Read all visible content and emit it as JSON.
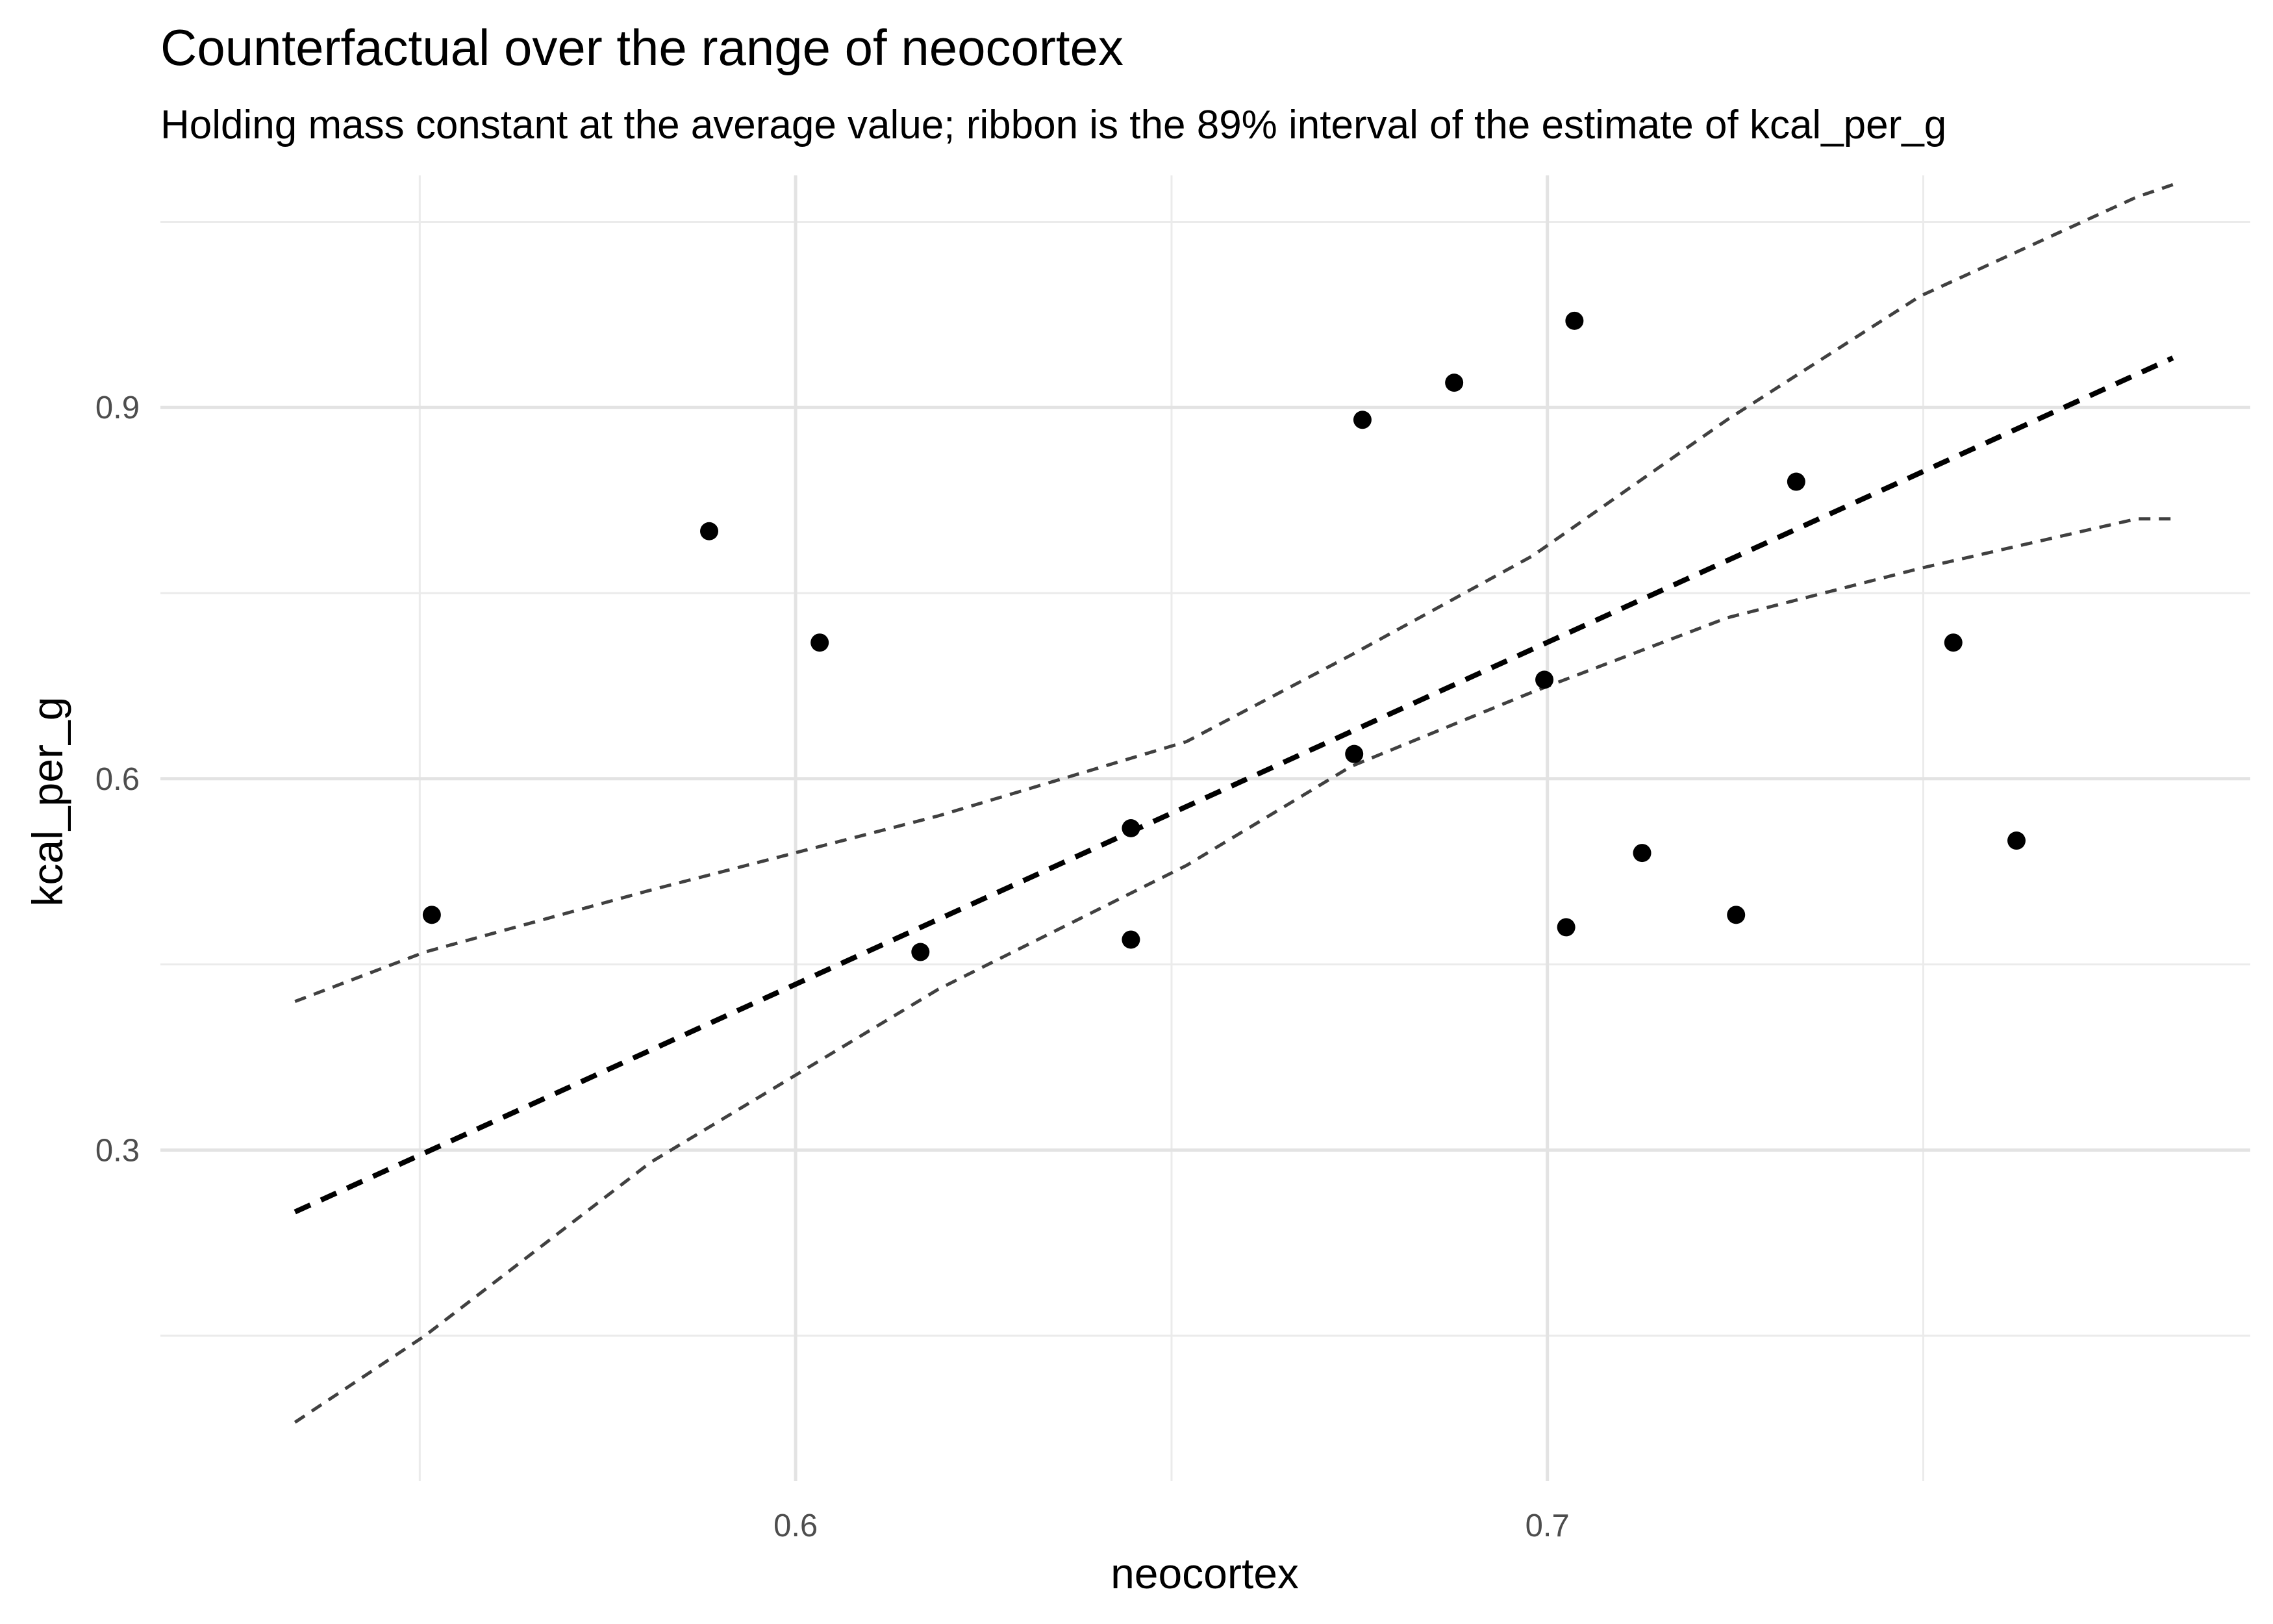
{
  "chart_data": {
    "type": "scatter",
    "title": "Counterfactual over the range of neocortex",
    "subtitle": "Holding mass constant at the average value; ribbon is the 89% interval of the estimate of kcal_per_g",
    "xlabel": "neocortex",
    "ylabel": "kcal_per_g",
    "xlim": [
      0.5155,
      0.7935
    ],
    "ylim": [
      0.0325,
      1.0875
    ],
    "x_major_ticks": [
      0.6,
      0.7
    ],
    "x_minor_ticks": [
      0.55,
      0.65,
      0.75
    ],
    "y_major_ticks": [
      0.3,
      0.6,
      0.9
    ],
    "y_minor_ticks": [
      0.15,
      0.45,
      0.75,
      1.05
    ],
    "x_tick_labels": [
      "0.6",
      "0.7"
    ],
    "y_tick_labels": [
      "0.3",
      "0.6",
      "0.9"
    ],
    "grid": true,
    "points": {
      "x": [
        0.5516,
        0.5885,
        0.6032,
        0.6166,
        0.6446,
        0.6446,
        0.6743,
        0.6754,
        0.6876,
        0.6996,
        0.7025,
        0.7036,
        0.7126,
        0.7251,
        0.7331,
        0.754,
        0.7624
      ],
      "y": [
        0.49,
        0.8,
        0.71,
        0.46,
        0.56,
        0.47,
        0.62,
        0.89,
        0.92,
        0.68,
        0.48,
        0.97,
        0.54,
        0.49,
        0.84,
        0.71,
        0.55
      ],
      "color": "#000000"
    },
    "mean_line": {
      "x": [
        0.5334,
        0.7832
      ],
      "y": [
        0.25,
        0.94
      ],
      "color": "#000000",
      "style": "dashed"
    },
    "ribbon_upper": {
      "x": [
        0.5334,
        0.5507,
        0.5807,
        0.619,
        0.652,
        0.6739,
        0.698,
        0.7239,
        0.7496,
        0.7784,
        0.7832
      ],
      "y": [
        0.42,
        0.46,
        0.51,
        0.57,
        0.63,
        0.7,
        0.78,
        0.89,
        0.99,
        1.07,
        1.08
      ],
      "color": "#404040",
      "style": "dashed"
    },
    "ribbon_lower": {
      "x": [
        0.5334,
        0.5507,
        0.5807,
        0.619,
        0.652,
        0.6739,
        0.698,
        0.7239,
        0.7496,
        0.7784,
        0.7832
      ],
      "y": [
        0.08,
        0.15,
        0.29,
        0.43,
        0.53,
        0.61,
        0.67,
        0.73,
        0.77,
        0.81,
        0.81
      ],
      "color": "#404040",
      "style": "dashed"
    }
  }
}
